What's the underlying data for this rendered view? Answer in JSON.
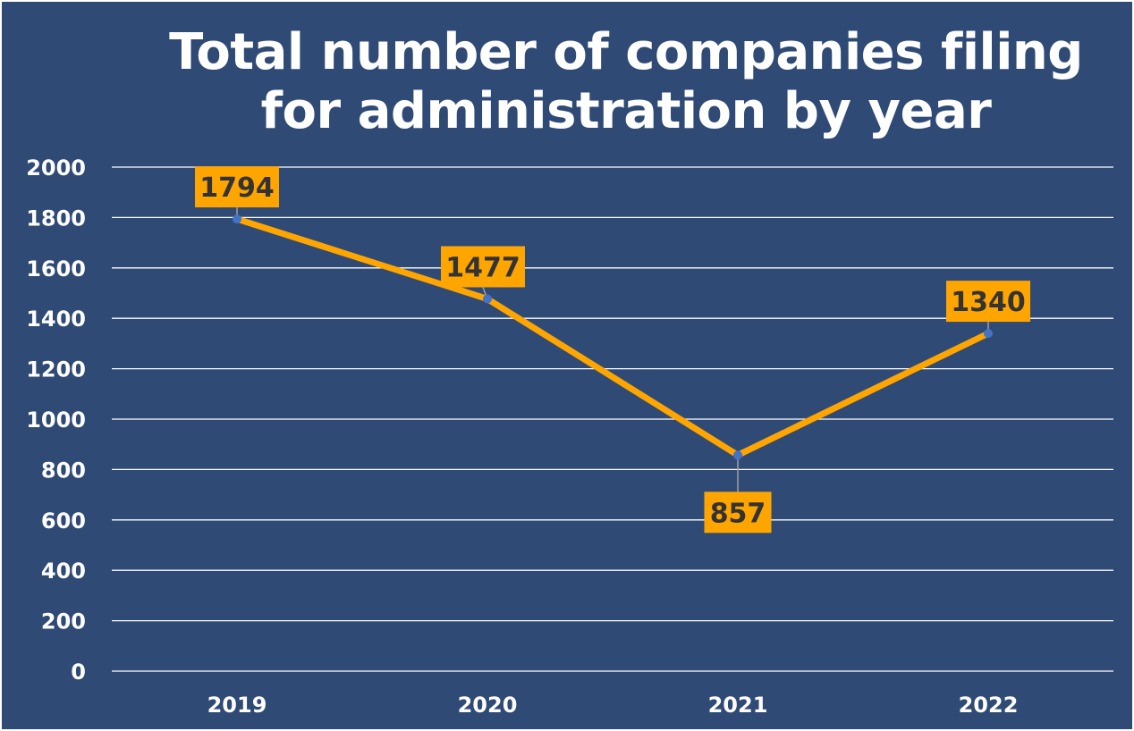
{
  "chart_data": {
    "type": "line",
    "title": "Total number of companies filing for administration by year",
    "xlabel": "",
    "ylabel": "",
    "categories": [
      "2019",
      "2020",
      "2021",
      "2022"
    ],
    "series": [
      {
        "values": [
          1794,
          1477,
          857,
          1340
        ]
      }
    ],
    "data_labels": [
      "1794",
      "1477",
      "857",
      "1340"
    ],
    "ylim": [
      0,
      2000
    ],
    "y_ticks": [
      "0",
      "200",
      "400",
      "600",
      "800",
      "1000",
      "1200",
      "1400",
      "1600",
      "1800",
      "2000"
    ],
    "grid": true,
    "legend": "none",
    "colors": {
      "background": "#2f4a75",
      "line": "#ffa500",
      "marker": "#4472c4",
      "label_box": "#ffa500",
      "label_text": "#333333",
      "grid": "#ffffff",
      "text": "#ffffff"
    }
  }
}
